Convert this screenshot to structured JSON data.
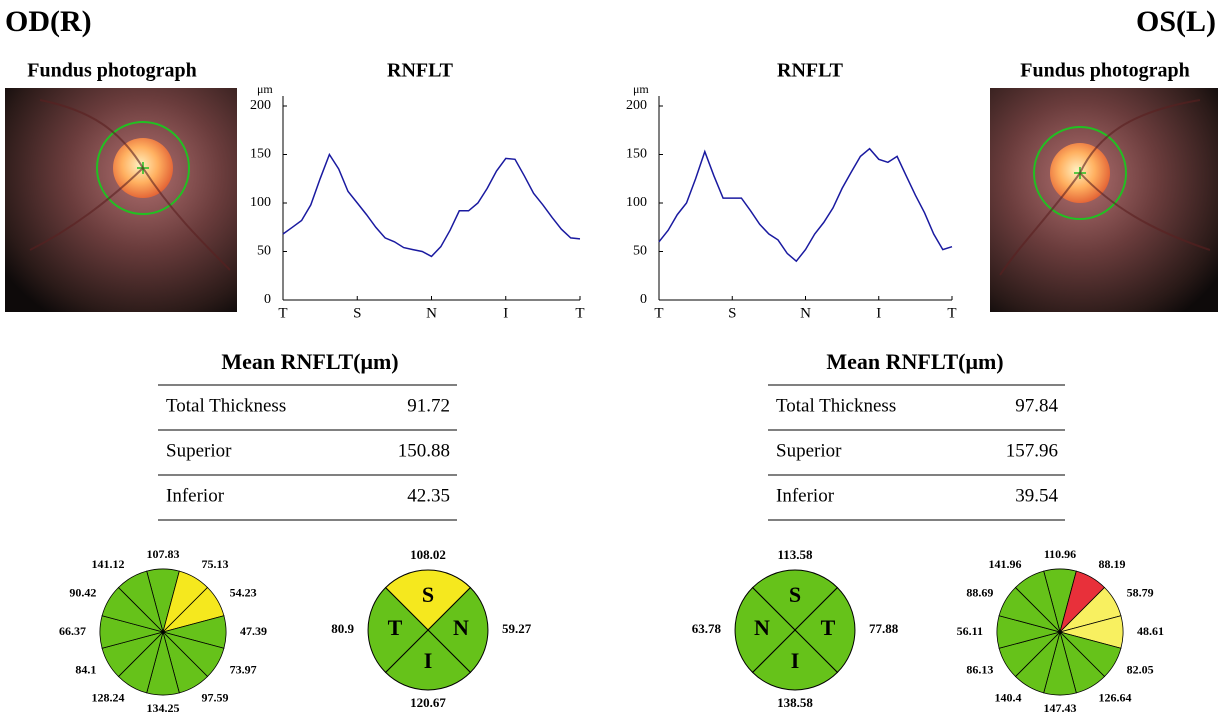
{
  "header": {
    "left": "OD(R)",
    "right": "OS(L)"
  },
  "eyes": [
    {
      "photo_title": "Fundus photograph",
      "table": {
        "title": "Mean RNFLT(μm)",
        "rows": [
          [
            "Total Thickness",
            91.72
          ],
          [
            "Superior",
            150.88
          ],
          [
            "Inferior",
            42.35
          ]
        ]
      },
      "clock": {
        "sectors": [
          {
            "value": 107.83,
            "color": "#66c21a"
          },
          {
            "value": 75.13,
            "color": "#f5e81e"
          },
          {
            "value": 54.23,
            "color": "#f5e81e"
          },
          {
            "value": 47.39,
            "color": "#66c21a"
          },
          {
            "value": 73.97,
            "color": "#66c21a"
          },
          {
            "value": 97.59,
            "color": "#66c21a"
          },
          {
            "value": 134.25,
            "color": "#66c21a"
          },
          {
            "value": 128.24,
            "color": "#66c21a"
          },
          {
            "value": 84.1,
            "color": "#66c21a"
          },
          {
            "value": 66.37,
            "color": "#66c21a"
          },
          {
            "value": 90.42,
            "color": "#66c21a"
          },
          {
            "value": 141.12,
            "color": "#66c21a"
          }
        ]
      },
      "quadrants": {
        "sectors": [
          {
            "letter": "S",
            "value": 108.02,
            "color": "#f5e81e"
          },
          {
            "letter": "N",
            "value": 59.27,
            "color": "#66c21a"
          },
          {
            "letter": "I",
            "value": 120.67,
            "color": "#66c21a"
          },
          {
            "letter": "T",
            "value": 80.9,
            "color": "#66c21a"
          }
        ]
      }
    },
    {
      "photo_title": "Fundus photograph",
      "table": {
        "title": "Mean RNFLT(μm)",
        "rows": [
          [
            "Total Thickness",
            97.84
          ],
          [
            "Superior",
            157.96
          ],
          [
            "Inferior",
            39.54
          ]
        ]
      },
      "clock": {
        "sectors": [
          {
            "value": 110.96,
            "color": "#66c21a"
          },
          {
            "value": 88.19,
            "color": "#e8303a"
          },
          {
            "value": 58.79,
            "color": "#f8f060"
          },
          {
            "value": 48.61,
            "color": "#f8f060"
          },
          {
            "value": 82.05,
            "color": "#66c21a"
          },
          {
            "value": 126.64,
            "color": "#66c21a"
          },
          {
            "value": 147.43,
            "color": "#66c21a"
          },
          {
            "value": 140.4,
            "color": "#66c21a"
          },
          {
            "value": 86.13,
            "color": "#66c21a"
          },
          {
            "value": 56.11,
            "color": "#66c21a"
          },
          {
            "value": 88.69,
            "color": "#66c21a"
          },
          {
            "value": 141.96,
            "color": "#66c21a"
          }
        ]
      },
      "quadrants": {
        "sectors": [
          {
            "letter": "S",
            "value": 113.58,
            "color": "#66c21a"
          },
          {
            "letter": "T",
            "value": 77.88,
            "color": "#66c21a"
          },
          {
            "letter": "I",
            "value": 138.58,
            "color": "#66c21a"
          },
          {
            "letter": "N",
            "value": 63.78,
            "color": "#66c21a"
          }
        ]
      }
    }
  ],
  "chart_data": [
    {
      "type": "line",
      "title": "RNFLT",
      "y_label": "μm",
      "color": "#1a1aa0",
      "xlim": [
        0,
        4
      ],
      "xticks": [
        {
          "value": 0,
          "label": "T"
        },
        {
          "value": 1,
          "label": "S"
        },
        {
          "value": 2,
          "label": "N"
        },
        {
          "value": 3,
          "label": "I"
        },
        {
          "value": 4,
          "label": "T"
        }
      ],
      "ylim": [
        0,
        200
      ],
      "yticks": [
        0,
        50,
        100,
        150,
        200
      ],
      "x": [
        0,
        0.125,
        0.25,
        0.375,
        0.5,
        0.625,
        0.75,
        0.875,
        1,
        1.125,
        1.25,
        1.375,
        1.5,
        1.625,
        1.75,
        1.875,
        2,
        2.125,
        2.25,
        2.375,
        2.5,
        2.625,
        2.75,
        2.875,
        3,
        3.125,
        3.25,
        3.375,
        3.5,
        3.625,
        3.75,
        3.875,
        4
      ],
      "values": [
        68,
        75,
        82,
        98,
        125,
        150,
        135,
        112,
        100,
        88,
        75,
        64,
        60,
        54,
        52,
        50,
        45,
        55,
        72,
        92,
        92,
        100,
        115,
        133,
        146,
        145,
        128,
        110,
        98,
        85,
        73,
        64,
        63
      ]
    },
    {
      "type": "line",
      "title": "RNFLT",
      "y_label": "μm",
      "color": "#1a1aa0",
      "xlim": [
        0,
        4
      ],
      "xticks": [
        {
          "value": 0,
          "label": "T"
        },
        {
          "value": 1,
          "label": "S"
        },
        {
          "value": 2,
          "label": "N"
        },
        {
          "value": 3,
          "label": "I"
        },
        {
          "value": 4,
          "label": "T"
        }
      ],
      "ylim": [
        0,
        200
      ],
      "yticks": [
        0,
        50,
        100,
        150,
        200
      ],
      "x": [
        0,
        0.125,
        0.25,
        0.375,
        0.5,
        0.625,
        0.75,
        0.875,
        1,
        1.125,
        1.25,
        1.375,
        1.5,
        1.625,
        1.75,
        1.875,
        2,
        2.125,
        2.25,
        2.375,
        2.5,
        2.625,
        2.75,
        2.875,
        3,
        3.125,
        3.25,
        3.375,
        3.5,
        3.625,
        3.75,
        3.875,
        4
      ],
      "values": [
        60,
        72,
        88,
        100,
        125,
        153,
        128,
        105,
        105,
        105,
        92,
        78,
        68,
        62,
        48,
        40,
        52,
        68,
        80,
        95,
        115,
        132,
        148,
        156,
        145,
        142,
        148,
        128,
        108,
        90,
        68,
        52,
        55
      ]
    }
  ]
}
